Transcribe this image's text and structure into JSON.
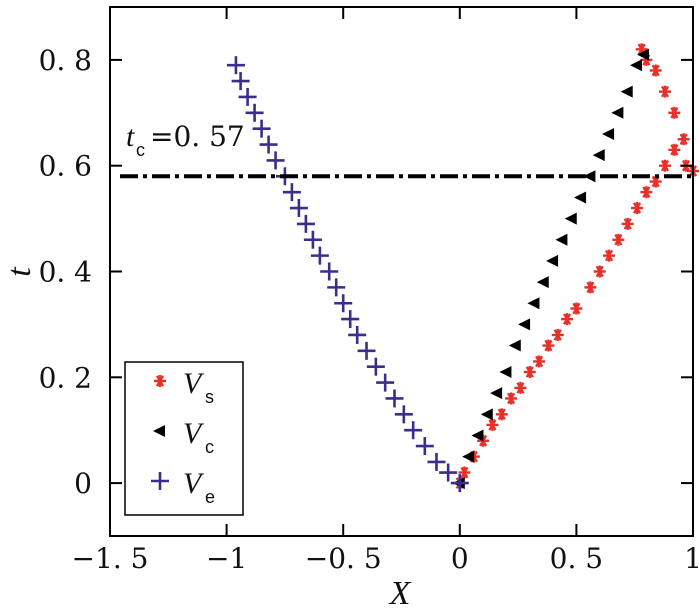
{
  "chart_data": {
    "type": "scatter",
    "xlabel": "X",
    "ylabel": "t",
    "xlim": [
      -1.5,
      1.0
    ],
    "ylim": [
      -0.1,
      0.9
    ],
    "x_ticks": [
      -1.5,
      -1,
      -0.5,
      0,
      0.5,
      1
    ],
    "x_tick_labels": [
      "−1. 5",
      "−1",
      "−0. 5",
      "0",
      "0. 5",
      "1"
    ],
    "y_ticks": [
      0,
      0.2,
      0.4,
      0.6,
      0.8
    ],
    "y_tick_labels": [
      "0",
      "0. 2",
      "0. 4",
      "0. 6",
      "0. 8"
    ],
    "grid": false,
    "legend_position": "bottom-left",
    "annotation": {
      "symbol": "t",
      "subscript": "c",
      "value_text": "=0. 57",
      "line_y": 0.58,
      "line_style": "dash-dot",
      "line_color": "#000000"
    },
    "series": [
      {
        "name": "V",
        "subscript": "s",
        "marker": "star",
        "color": "#e8302a",
        "points": [
          [
            0.0,
            0.0
          ],
          [
            0.02,
            0.02
          ],
          [
            0.06,
            0.05
          ],
          [
            0.1,
            0.08
          ],
          [
            0.14,
            0.11
          ],
          [
            0.18,
            0.13
          ],
          [
            0.22,
            0.16
          ],
          [
            0.26,
            0.18
          ],
          [
            0.3,
            0.21
          ],
          [
            0.34,
            0.23
          ],
          [
            0.38,
            0.26
          ],
          [
            0.42,
            0.28
          ],
          [
            0.46,
            0.31
          ],
          [
            0.5,
            0.33
          ],
          [
            0.56,
            0.37
          ],
          [
            0.6,
            0.4
          ],
          [
            0.64,
            0.43
          ],
          [
            0.68,
            0.46
          ],
          [
            0.72,
            0.49
          ],
          [
            0.76,
            0.52
          ],
          [
            0.8,
            0.55
          ],
          [
            0.84,
            0.57
          ],
          [
            0.88,
            0.6
          ],
          [
            0.92,
            0.63
          ],
          [
            0.97,
            0.6
          ],
          [
            1.0,
            0.59
          ],
          [
            0.96,
            0.65
          ],
          [
            0.92,
            0.7
          ],
          [
            0.88,
            0.74
          ],
          [
            0.84,
            0.78
          ],
          [
            0.8,
            0.8
          ],
          [
            0.78,
            0.82
          ]
        ]
      },
      {
        "name": "V",
        "subscript": "c",
        "marker": "triangle-left",
        "color": "#000000",
        "points": [
          [
            0.0,
            0.0
          ],
          [
            0.04,
            0.05
          ],
          [
            0.08,
            0.09
          ],
          [
            0.12,
            0.13
          ],
          [
            0.16,
            0.17
          ],
          [
            0.2,
            0.21
          ],
          [
            0.24,
            0.26
          ],
          [
            0.28,
            0.3
          ],
          [
            0.32,
            0.34
          ],
          [
            0.36,
            0.38
          ],
          [
            0.4,
            0.42
          ],
          [
            0.44,
            0.46
          ],
          [
            0.48,
            0.5
          ],
          [
            0.52,
            0.54
          ],
          [
            0.56,
            0.58
          ],
          [
            0.6,
            0.62
          ],
          [
            0.64,
            0.66
          ],
          [
            0.68,
            0.7
          ],
          [
            0.72,
            0.74
          ],
          [
            0.76,
            0.79
          ],
          [
            0.79,
            0.81
          ]
        ]
      },
      {
        "name": "V",
        "subscript": "e",
        "marker": "plus",
        "color": "#3a2d8c",
        "points": [
          [
            -0.96,
            0.79
          ],
          [
            -0.94,
            0.76
          ],
          [
            -0.91,
            0.73
          ],
          [
            -0.88,
            0.7
          ],
          [
            -0.85,
            0.67
          ],
          [
            -0.82,
            0.64
          ],
          [
            -0.79,
            0.61
          ],
          [
            -0.75,
            0.58
          ],
          [
            -0.72,
            0.55
          ],
          [
            -0.69,
            0.52
          ],
          [
            -0.66,
            0.49
          ],
          [
            -0.63,
            0.46
          ],
          [
            -0.6,
            0.43
          ],
          [
            -0.56,
            0.4
          ],
          [
            -0.53,
            0.37
          ],
          [
            -0.5,
            0.34
          ],
          [
            -0.47,
            0.31
          ],
          [
            -0.44,
            0.28
          ],
          [
            -0.4,
            0.25
          ],
          [
            -0.36,
            0.22
          ],
          [
            -0.32,
            0.19
          ],
          [
            -0.28,
            0.16
          ],
          [
            -0.24,
            0.13
          ],
          [
            -0.2,
            0.1
          ],
          [
            -0.15,
            0.07
          ],
          [
            -0.1,
            0.04
          ],
          [
            -0.05,
            0.02
          ],
          [
            0.0,
            0.0
          ]
        ]
      }
    ]
  }
}
